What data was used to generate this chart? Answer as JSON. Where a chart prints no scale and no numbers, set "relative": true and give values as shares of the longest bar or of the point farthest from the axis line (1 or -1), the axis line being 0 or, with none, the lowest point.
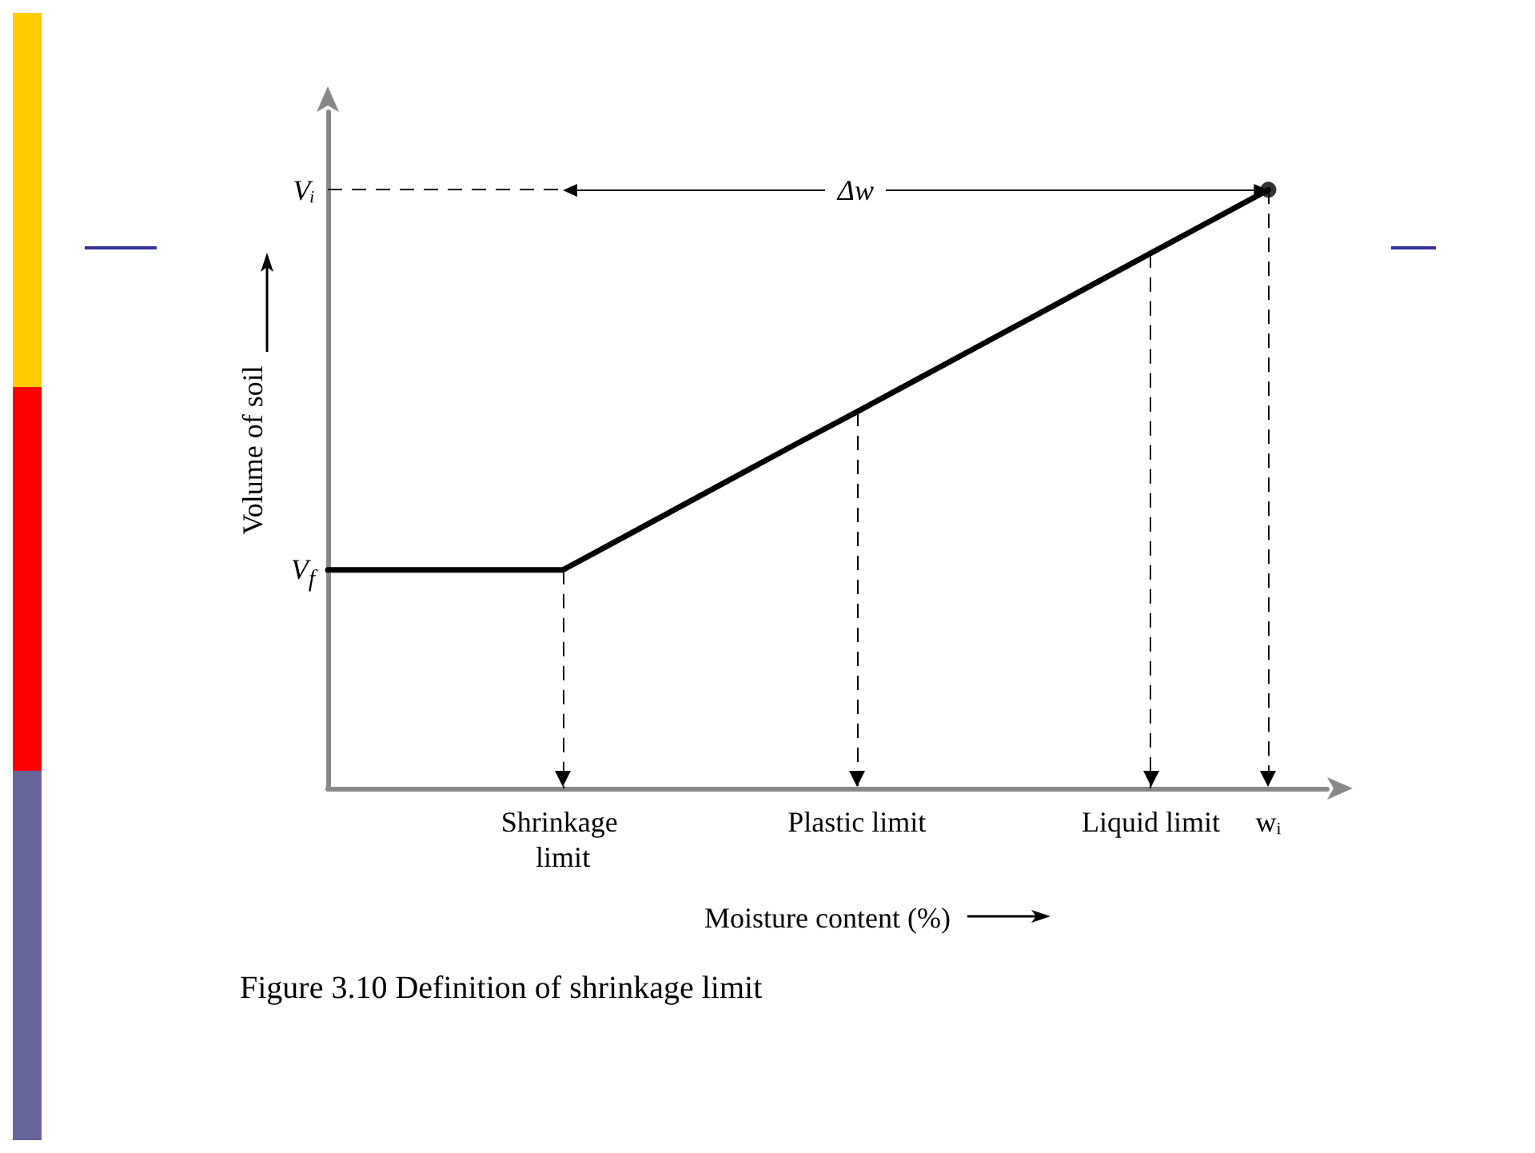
{
  "chart_data": {
    "type": "line",
    "title": "Figure 3.10 Definition of shrinkage limit",
    "xlabel": "Moisture content (%)",
    "ylabel": "Volume of soil",
    "relative": true,
    "categories": [
      null,
      null,
      null,
      null,
      "Shrinkage limit",
      null,
      null,
      null,
      null,
      "Plastic limit",
      null,
      null,
      null,
      null,
      "Liquid limit",
      null,
      "wᵢ",
      null
    ],
    "series": [
      {
        "color": "#000000",
        "values": [
          0.365,
          0.365,
          0.365,
          0.365,
          0.365,
          0.418,
          0.471,
          0.524,
          0.577,
          0.629,
          0.682,
          0.735,
          0.788,
          0.841,
          0.894,
          0.947,
          1,
          null
        ]
      },
      {
        "type": "scatter",
        "color": "#000000",
        "marker": "circle",
        "x": [
          "wᵢ"
        ],
        "values": [
          1
        ]
      }
    ],
    "ref_lines": [
      {
        "axis": "x",
        "value": "Shrinkage limit"
      },
      {
        "axis": "x",
        "value": "Plastic limit"
      },
      {
        "axis": "x",
        "value": "Liquid limit"
      },
      {
        "axis": "x",
        "value": "wᵢ"
      },
      {
        "axis": "y",
        "value": 1
      }
    ],
    "line_style": "solid",
    "annotations": [
      "Vᵢ",
      "V$_{f}$",
      {
        "text": "Δw",
        "x": "Plastic limit",
        "y": 1
      }
    ]
  }
}
